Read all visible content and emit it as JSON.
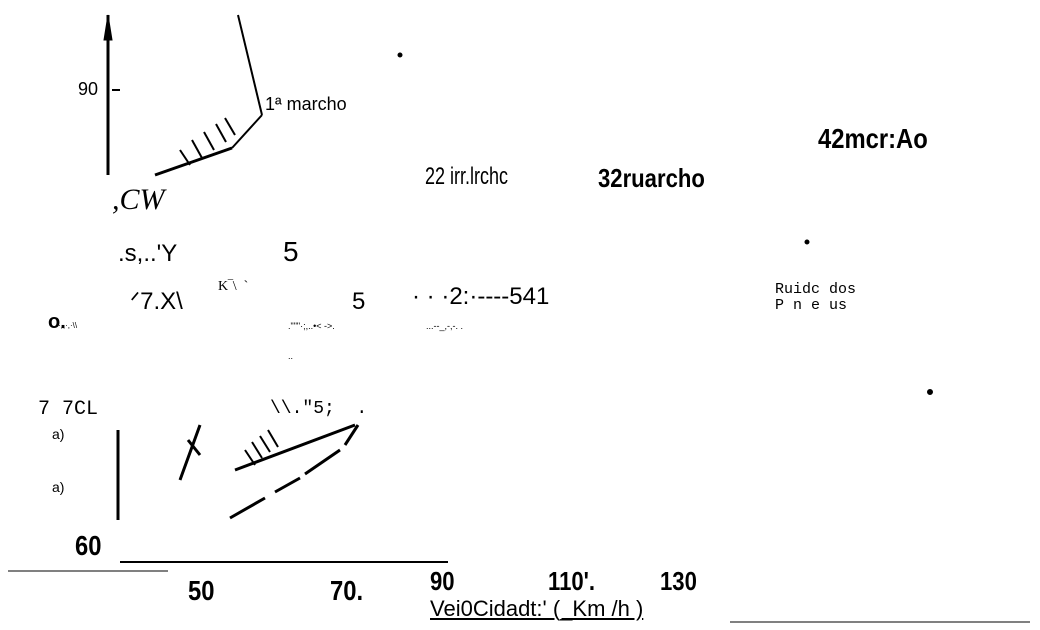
{
  "labels": {
    "y90": "90",
    "gear1": "1ª marcho",
    "gear4": "42mcr:Ao",
    "gear2": "22 irr.lrchc",
    "gear3": "32ruarcho",
    "cw": ",CW",
    "s_y": ".s,..'Y",
    "five_a": "5",
    "k_mark": "K‾\\  `",
    "seven_x": "ᐟ7.X\\",
    "five_b": "5",
    "dots_541": "· · ·2:·----541",
    "noise_noise1": "·,,·,·\\\\",
    "noise2": ".\"\"\"·;,..•< ->.",
    "noise3": "...--_,-,-. .",
    "noise4": "..",
    "o_mark": "o.",
    "ruido1": "Ruidc dos",
    "ruido2": "P n e us",
    "seven_cl": "7 7CL",
    "quote5": "\\\\.\"5;  .",
    "a1": "a)",
    "a2": "a)",
    "y60": "60",
    "x50": "50",
    "x70": "70.",
    "x90": "90",
    "x110": "110'.",
    "x130": "130",
    "xlabel": "Vei0Cidadt:' (_Km /h )"
  }
}
